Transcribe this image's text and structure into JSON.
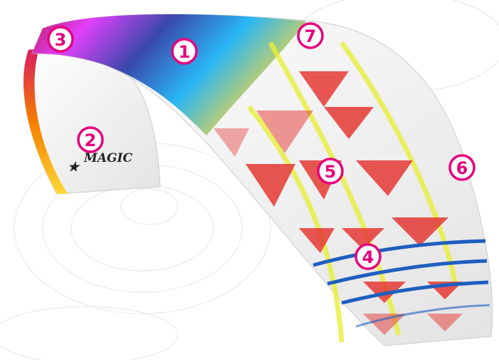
{
  "brand": "MAGIC",
  "markers": [
    {
      "label": "1"
    },
    {
      "label": "2"
    },
    {
      "label": "3"
    },
    {
      "label": "4"
    },
    {
      "label": "5"
    },
    {
      "label": "6"
    },
    {
      "label": "7"
    }
  ]
}
